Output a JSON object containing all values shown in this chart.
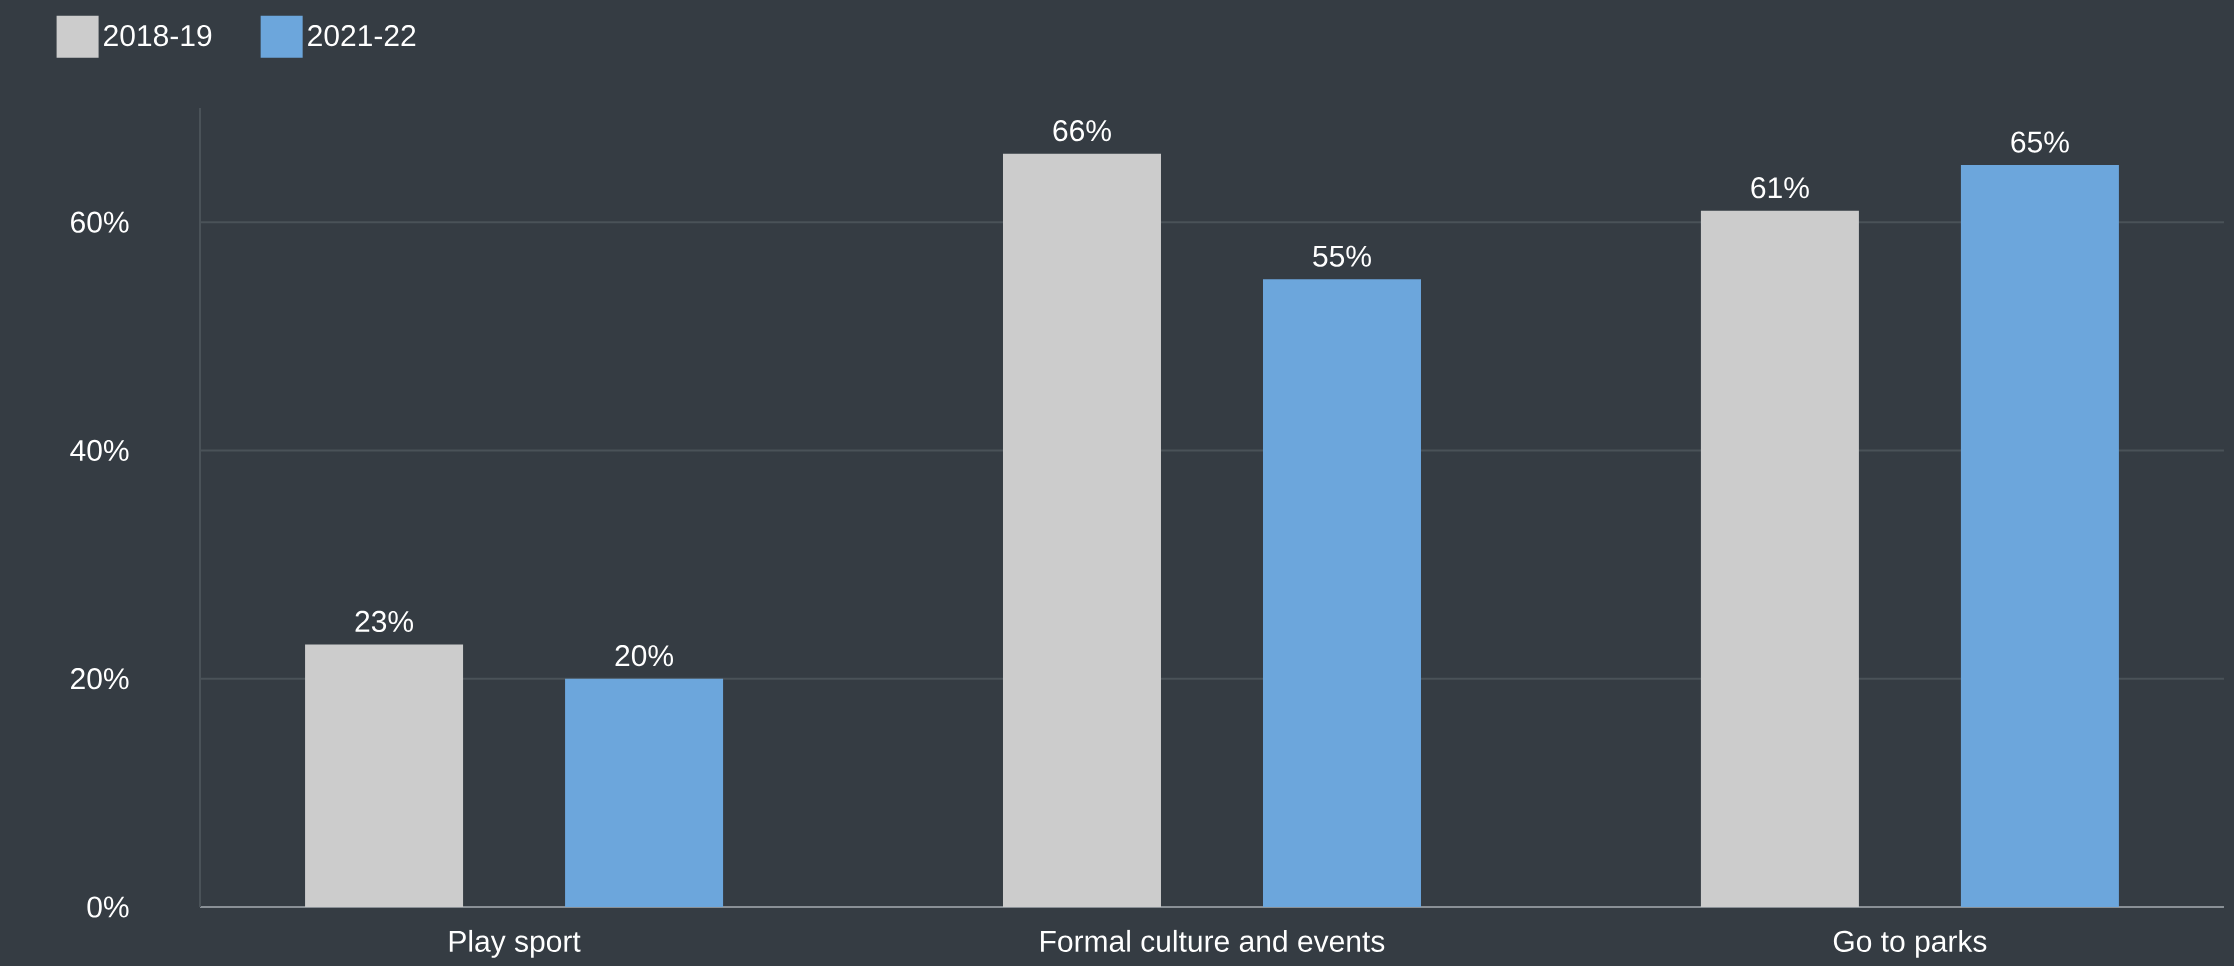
{
  "chart_data": {
    "type": "bar",
    "categories": [
      "Play sport",
      "Formal culture and events",
      "Go to parks"
    ],
    "series": [
      {
        "name": "2018-19",
        "color": "#cccccc",
        "values": [
          23,
          66,
          61
        ],
        "value_labels": [
          "23%",
          "66%",
          "61%"
        ]
      },
      {
        "name": "2021-22",
        "color": "#6ca6dc",
        "values": [
          20,
          55,
          65
        ],
        "value_labels": [
          "20%",
          "55%",
          "65%"
        ]
      }
    ],
    "yticks": [
      {
        "value": 0,
        "label": "0%"
      },
      {
        "value": 20,
        "label": "20%"
      },
      {
        "value": 40,
        "label": "40%"
      },
      {
        "value": 60,
        "label": "60%"
      }
    ],
    "ylim": [
      0,
      70
    ],
    "grid": "y",
    "legend": "top left"
  }
}
